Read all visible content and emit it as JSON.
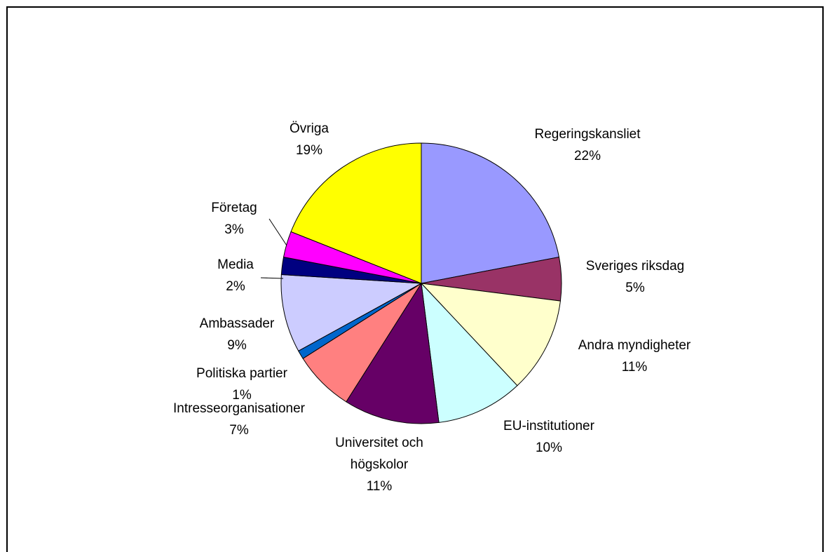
{
  "chart_data": {
    "type": "pie",
    "categories": [
      "Regeringskansliet",
      "Sveriges riksdag",
      "Andra myndigheter",
      "EU-institutioner",
      "Universitet och högskolor",
      "Intresseorganisationer",
      "Politiska partier",
      "Ambassader",
      "Media",
      "Företag",
      "Övriga"
    ],
    "values": [
      22,
      5,
      11,
      10,
      11,
      7,
      1,
      9,
      2,
      3,
      19
    ],
    "value_labels": [
      "22%",
      "5%",
      "11%",
      "10%",
      "11%",
      "7%",
      "1%",
      "9%",
      "2%",
      "3%",
      "19%"
    ],
    "colors": [
      "#9999ff",
      "#993366",
      "#ffffcc",
      "#ccffff",
      "#660066",
      "#ff8080",
      "#0066cc",
      "#ccccff",
      "#000080",
      "#ff00ff",
      "#ffff00"
    ]
  }
}
